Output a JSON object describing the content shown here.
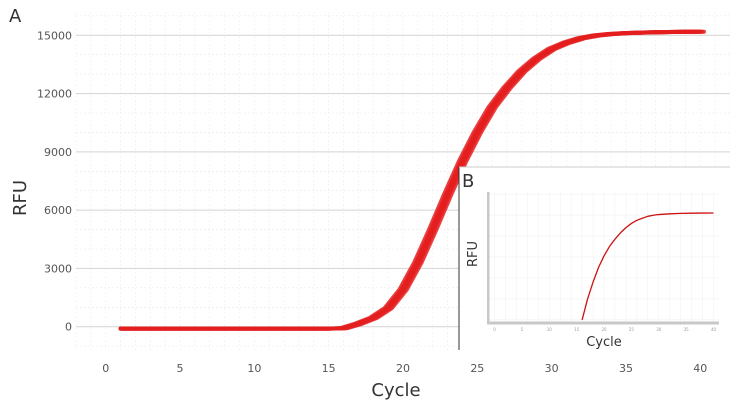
{
  "chart_data": [
    {
      "panel": "A",
      "type": "line",
      "xlabel": "Cycle",
      "ylabel": "RFU",
      "xlim": [
        -2,
        42
      ],
      "ylim": [
        -1200,
        16200
      ],
      "xticks": [
        0,
        5,
        10,
        15,
        20,
        25,
        30,
        35,
        40
      ],
      "yticks": [
        0,
        3000,
        6000,
        9000,
        12000,
        15000
      ],
      "grid": true,
      "color": "#e41e1e",
      "series": [
        {
          "x": [
            1,
            4,
            8,
            12,
            15,
            16,
            17,
            18,
            19,
            20,
            21,
            22,
            23,
            24,
            25,
            26,
            27,
            28,
            29,
            30,
            31,
            32,
            33,
            34,
            35,
            36,
            37,
            38,
            39,
            40
          ],
          "values": [
            -100,
            -100,
            -100,
            -100,
            -100,
            -80,
            150,
            450,
            950,
            1900,
            3300,
            5000,
            6800,
            8500,
            10000,
            11300,
            12300,
            13150,
            13800,
            14300,
            14620,
            14850,
            14990,
            15070,
            15110,
            15140,
            15160,
            15170,
            15180,
            15180
          ]
        }
      ]
    },
    {
      "panel": "B",
      "type": "line",
      "xlabel": "Cycle",
      "ylabel": "RFU",
      "xlim": [
        -1,
        41
      ],
      "ylim": [
        -2,
        122
      ],
      "color": "#cc1111",
      "series": [
        {
          "x": [
            16,
            17,
            18,
            19,
            20,
            21,
            22,
            23,
            24,
            25,
            26,
            27,
            28,
            29,
            30,
            32,
            34,
            36,
            38,
            40
          ],
          "values": [
            0,
            20,
            36,
            50,
            61,
            70,
            77,
            83,
            88,
            92,
            95,
            97,
            98.8,
            99.8,
            100.5,
            101.2,
            101.6,
            101.8,
            101.9,
            102
          ]
        }
      ]
    }
  ]
}
